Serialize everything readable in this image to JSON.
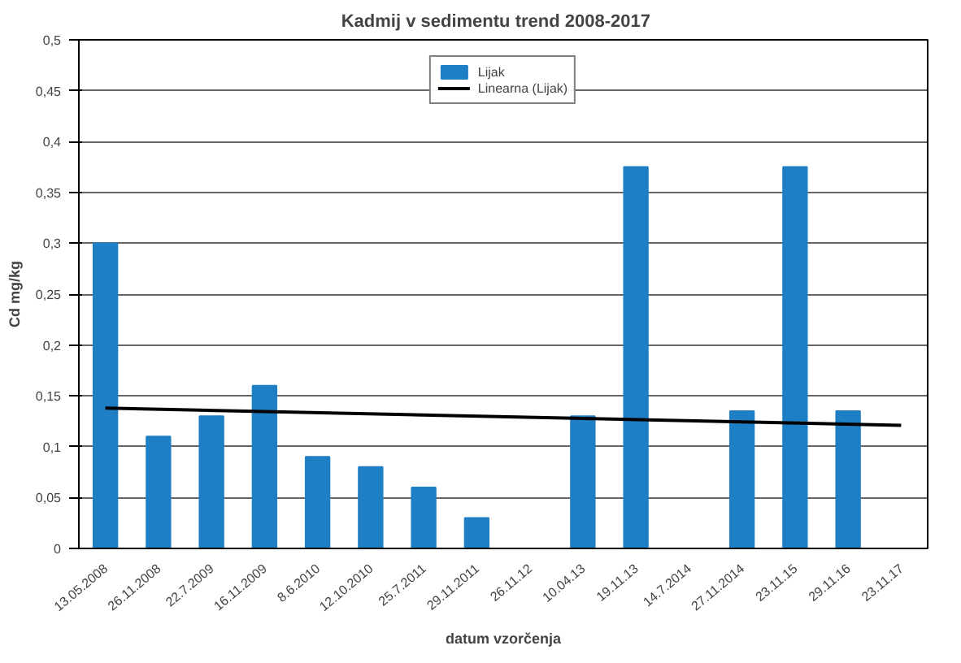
{
  "chart_data": {
    "type": "bar",
    "title": "Kadmij  v sedimentu  trend  2008-2017",
    "xlabel": "datum vzorčenja",
    "ylabel": "Cd mg/kg",
    "categories": [
      "13.05.2008",
      "26.11.2008",
      "22.7.2009",
      "16.11.2009",
      "8.6.2010",
      "12.10.2010",
      "25.7.2011",
      "29.11.2011",
      "26.11.12",
      "10.04.13",
      "19.11.13",
      "14.7.2014",
      "27.11.2014",
      "23.11.15",
      "29.11.16",
      "23.11.17"
    ],
    "series": [
      {
        "name": "Lijak",
        "color": "#1f7fc4",
        "values": [
          0.3,
          0.11,
          0.13,
          0.16,
          0.09,
          0.08,
          0.06,
          0.03,
          null,
          0.13,
          0.375,
          null,
          0.135,
          0.375,
          0.135,
          null
        ]
      },
      {
        "name": "Linearna (Lijak)",
        "type": "line",
        "color": "#000000",
        "x": [
          "13.05.2008",
          "23.11.17"
        ],
        "values": [
          0.138,
          0.121
        ]
      }
    ],
    "ylim": [
      0,
      0.5
    ],
    "yticks": [
      0,
      {
        "value": 0.05,
        "label": "0,05"
      },
      {
        "value": 0.1,
        "label": "0,1"
      },
      {
        "value": 0.15,
        "label": "0,15"
      },
      {
        "value": 0.2,
        "label": "0,2"
      },
      {
        "value": 0.25,
        "label": "0,25"
      },
      {
        "value": 0.3,
        "label": "0,3"
      },
      {
        "value": 0.35,
        "label": "0,35"
      },
      {
        "value": 0.4,
        "label": "0,4"
      },
      {
        "value": 0.45,
        "label": "0,45"
      },
      {
        "value": 0.5,
        "label": "0,5"
      }
    ],
    "grid": "y",
    "legend": "top"
  }
}
